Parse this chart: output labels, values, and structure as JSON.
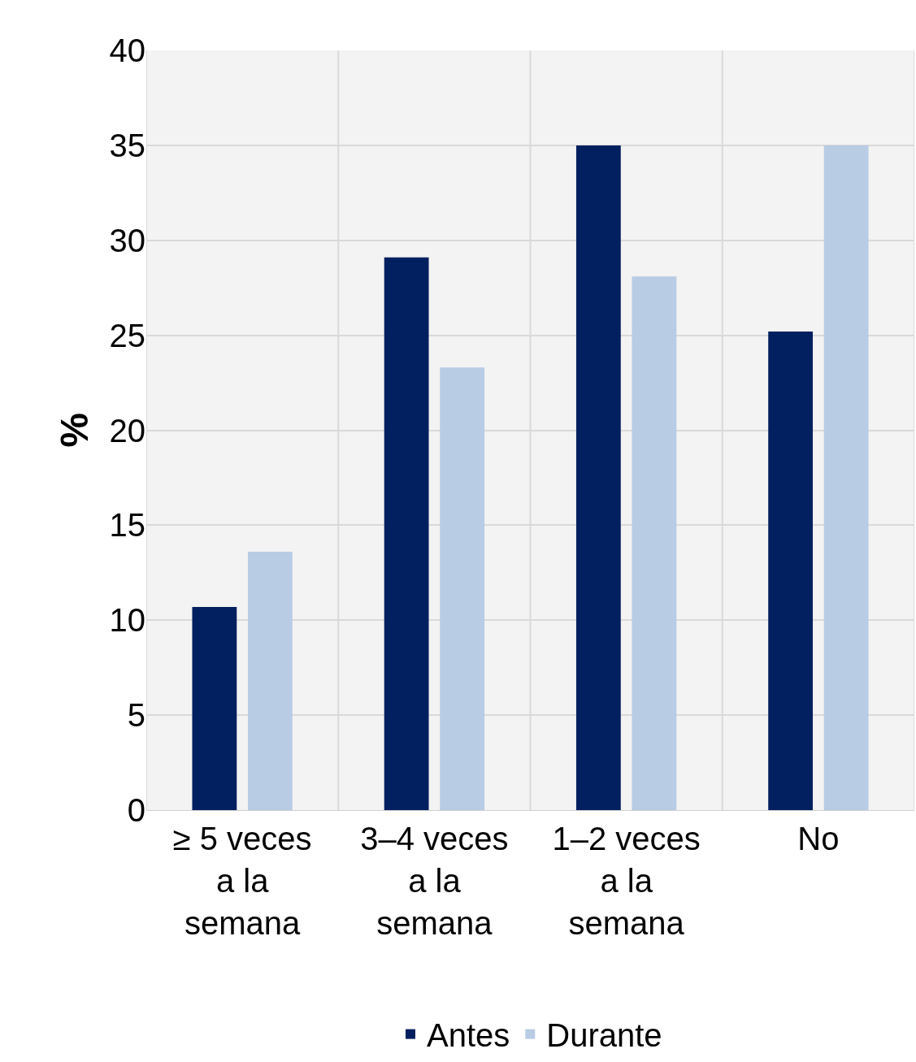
{
  "chart_data": {
    "type": "bar",
    "ylabel": "%",
    "categories": [
      "≥ 5 veces a la semana",
      "3–4 veces a la semana",
      "1–2 veces a la semana",
      "No"
    ],
    "series": [
      {
        "name": "Antes",
        "color": "#02205f",
        "values": [
          10.7,
          29.1,
          35,
          25.2
        ]
      },
      {
        "name": "Durante",
        "color": "#b8cce4",
        "values": [
          13.6,
          23.3,
          28.1,
          35
        ]
      }
    ],
    "ylim": [
      0,
      40
    ],
    "yticks": [
      0,
      5,
      10,
      15,
      20,
      25,
      30,
      35,
      40
    ],
    "grid": true,
    "legend": "bottom"
  }
}
